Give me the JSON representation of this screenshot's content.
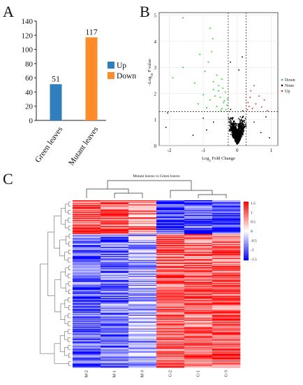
{
  "panels": {
    "a": "A",
    "b": "B",
    "c": "C"
  },
  "colors": {
    "up": "#2f7fbf",
    "down": "#ff8c28",
    "volcano_down": "#22dd22",
    "volcano_none": "#000000",
    "volcano_up": "#ff3333",
    "heat_high": "#ff0000",
    "heat_mid": "#ffffff",
    "heat_low": "#0000ff"
  },
  "chart_data": [
    {
      "type": "bar",
      "panel": "A",
      "categories": [
        "Green leaves",
        "Mutant leaves"
      ],
      "series": [
        {
          "name": "Up",
          "values": [
            51,
            null
          ]
        },
        {
          "name": "Down",
          "values": [
            null,
            117
          ]
        }
      ],
      "data_labels": [
        "51",
        "117"
      ],
      "legend": [
        "Up",
        "Down"
      ],
      "legend_position": "right",
      "ylim": [
        0,
        140
      ],
      "yticks": [
        "0",
        "20",
        "40",
        "60",
        "80",
        "100",
        "120",
        "140"
      ]
    },
    {
      "type": "scatter",
      "panel": "B",
      "xlabel": "Log2 Fold Change",
      "ylabel": "-Log10 P value",
      "xlim": [
        -2.3,
        1.2
      ],
      "ylim": [
        0,
        5.1
      ],
      "xticks": [
        "-2",
        "-1",
        "0",
        "1"
      ],
      "yticks": [
        "0",
        "1",
        "2",
        "3",
        "4",
        "5"
      ],
      "thresholds": {
        "x": [
          -0.263,
          0.263
        ],
        "y": 1.3
      },
      "legend": [
        "Down",
        "None",
        "Up"
      ],
      "legend_position": "right",
      "series": [
        {
          "name": "Down",
          "points": [
            [
              -1.6,
              4.9
            ],
            [
              -0.8,
              4.5
            ],
            [
              -0.72,
              4.1
            ],
            [
              -0.75,
              3.6
            ],
            [
              -1.1,
              3.5
            ],
            [
              -0.85,
              3.2
            ],
            [
              -1.6,
              3.0
            ],
            [
              -1.9,
              2.6
            ],
            [
              -0.95,
              2.85
            ],
            [
              -0.6,
              2.7
            ],
            [
              -0.45,
              2.55
            ],
            [
              -1.25,
              2.4
            ],
            [
              -0.55,
              2.3
            ],
            [
              -0.7,
              2.15
            ],
            [
              -0.35,
              2.05
            ],
            [
              -1.0,
              1.95
            ],
            [
              -0.5,
              1.85
            ],
            [
              -0.8,
              1.75
            ],
            [
              -0.4,
              1.65
            ],
            [
              -0.3,
              1.55
            ],
            [
              -0.6,
              1.5
            ],
            [
              -0.9,
              1.45
            ],
            [
              -0.45,
              1.42
            ],
            [
              -0.33,
              1.38
            ],
            [
              -1.15,
              1.6
            ],
            [
              -0.65,
              1.9
            ],
            [
              -0.55,
              2.1
            ],
            [
              -0.38,
              1.72
            ],
            [
              -0.48,
              1.35
            ],
            [
              -0.28,
              1.8
            ],
            [
              -0.7,
              2.45
            ],
            [
              -0.42,
              2.2
            ]
          ]
        },
        {
          "name": "Up",
          "points": [
            [
              0.8,
              1.75
            ],
            [
              0.55,
              1.6
            ],
            [
              0.35,
              1.5
            ],
            [
              0.45,
              1.42
            ],
            [
              0.3,
              1.38
            ],
            [
              0.65,
              1.9
            ],
            [
              0.4,
              2.1
            ],
            [
              0.32,
              1.65
            ],
            [
              0.5,
              2.3
            ],
            [
              0.72,
              1.48
            ],
            [
              0.38,
              1.85
            ],
            [
              0.9,
              1.34
            ]
          ]
        }
      ]
    },
    {
      "type": "heatmap",
      "panel": "C",
      "title": "Mutant leaves vs Green leaves",
      "columns": [
        "M-2",
        "M-1",
        "M-3",
        "G-2",
        "G-1",
        "G-3"
      ],
      "row_count": 168,
      "colorbar_ticks": [
        "1.5",
        "1",
        "0.5",
        "0",
        "-0.5",
        "-1",
        "-1.5"
      ],
      "value_range": [
        -1.5,
        1.5
      ]
    }
  ]
}
